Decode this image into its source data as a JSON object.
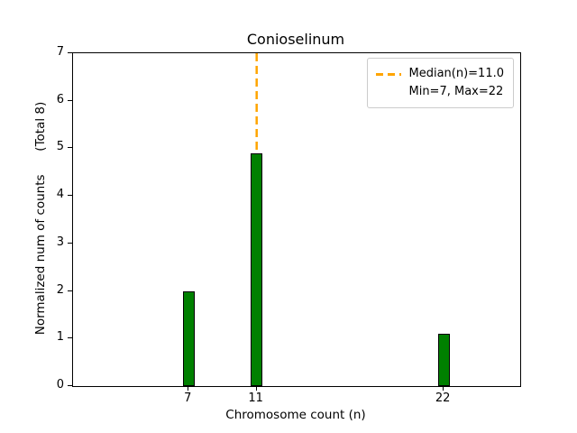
{
  "chart_data": {
    "type": "bar",
    "title": "Conioselinum",
    "xlabel": "Chromosome count (n)",
    "ylabel": "Normalized num of counts      (Total 8)",
    "categories": [
      7,
      11,
      22
    ],
    "values": [
      2,
      4.9,
      1.1
    ],
    "xlim": [
      0.2,
      26.5
    ],
    "ylim": [
      0,
      7
    ],
    "yticks": [
      0,
      1,
      2,
      3,
      4,
      5,
      6,
      7
    ],
    "xticks": [
      7,
      11,
      22
    ],
    "grid": false,
    "legend_position": "upper right",
    "median_line": {
      "x": 11,
      "style": "dashed"
    },
    "legend": [
      "Median(n)=11.0",
      "Min=7, Max=22"
    ],
    "colors": {
      "bar_fill": "#008000",
      "bar_edge": "#000000",
      "median_line": "#FFA500",
      "axis": "#000000",
      "legend_border": "#cccccc"
    }
  }
}
